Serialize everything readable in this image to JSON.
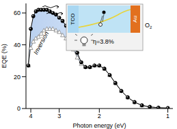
{
  "chart_data": {
    "type": "line",
    "xlabel": "Photon energy (eV)",
    "ylabel": "EQE (%)",
    "log": "x",
    "grid": false,
    "xlim": [
      0.95,
      4.2
    ],
    "xticks": [
      4,
      3,
      2,
      1
    ],
    "ylim": [
      0,
      66
    ],
    "yticks": [
      0,
      20,
      40,
      60
    ],
    "x": [
      4.1,
      4.0,
      3.9,
      3.8,
      3.7,
      3.6,
      3.5,
      3.4,
      3.3,
      3.2,
      3.1,
      3.0,
      2.9,
      2.8,
      2.7,
      2.6,
      2.5,
      2.4,
      2.3,
      2.2,
      2.1,
      2.0,
      1.9,
      1.8,
      1.7,
      1.6,
      1.5,
      1.4,
      1.3,
      1.2,
      1.1,
      1.0
    ],
    "series": [
      {
        "color": "#8c8c8c",
        "marker": "triangle",
        "values": [
          27,
          38,
          42,
          44,
          45,
          47,
          49,
          50,
          50,
          50,
          49,
          48,
          46,
          44,
          41,
          37,
          32,
          28,
          26,
          26,
          27,
          27,
          25,
          21,
          16,
          11,
          7,
          4,
          2,
          1,
          0.5,
          0.3
        ]
      },
      {
        "color": "#000000",
        "marker": "circle",
        "values": [
          27,
          50,
          58,
          61,
          62,
          62,
          62,
          62,
          61,
          60,
          59,
          57,
          55,
          52,
          48,
          42,
          35,
          29,
          26,
          26,
          27,
          27,
          25,
          21,
          16,
          11,
          7,
          4,
          2,
          1,
          0.5,
          0.3
        ]
      }
    ],
    "shaded_region": {
      "text": "Inversion",
      "color": "#6f9fe0"
    },
    "inset": {
      "tco": "TCO",
      "au": "Au",
      "o2": "O2",
      "efficiency": "η=3.8%"
    }
  }
}
